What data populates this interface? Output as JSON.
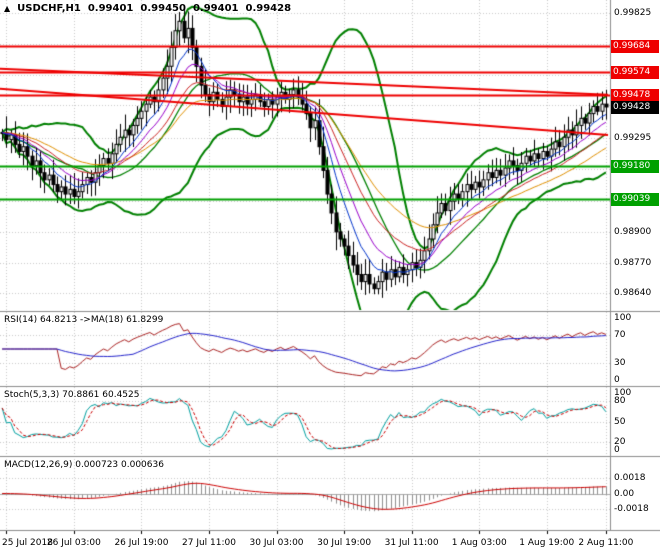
{
  "window": {
    "arrow_glyph": "▲",
    "symbol": "USDCHF,H1",
    "open": "0.99401",
    "high": "0.99450",
    "low": "0.99401",
    "close": "0.99428"
  },
  "colors": {
    "up_candle": "#ffffff",
    "down_candle": "#000000",
    "candle_border": "#000000",
    "bollinger": "#008000",
    "support": "#00a000",
    "resistance": "#ee0000",
    "current_badge": "#000000",
    "grid": "#c9c9c9",
    "separator": "#8c8c8c",
    "rsi_line": "#aa2222",
    "rsi_ma": "#2222cc",
    "stoch_k": "#00a0a0",
    "stoch_d": "#cc0000",
    "macd_signal": "#cc0000",
    "macd_hist": "#909090",
    "ema_colors": [
      "#0033cc",
      "#9900cc",
      "#cc2222",
      "#e09000"
    ]
  },
  "chart_data": {
    "type": "candlestick",
    "title": "USDCHF,H1",
    "x_labels": [
      "25 Jul 2018",
      "26 Jul 03:00",
      "26 Jul 19:00",
      "27 Jul 11:00",
      "30 Jul 03:00",
      "30 Jul 19:00",
      "31 Jul 11:00",
      "1 Aug 03:00",
      "1 Aug 19:00",
      "2 Aug 11:00"
    ],
    "x_label_indices": [
      1,
      17,
      33,
      49,
      65,
      81,
      97,
      113,
      129,
      143
    ],
    "price_range": [
      0.9857,
      0.9988
    ],
    "grid_prices": [
      0.99825,
      0.99695,
      0.99565,
      0.99435,
      0.99295,
      0.99165,
      0.9903,
      0.989,
      0.9877,
      0.9864
    ],
    "plain_axis_labels": [
      "0.99825",
      "0.99295",
      "0.98900",
      "0.98770",
      "0.98640"
    ],
    "level_labels": [
      {
        "price": 0.99684,
        "text": "0.99684",
        "kind": "resistance"
      },
      {
        "price": 0.99574,
        "text": "0.99574",
        "kind": "resistance"
      },
      {
        "price": 0.99478,
        "text": "0.99478",
        "kind": "resistance"
      },
      {
        "price": 0.99428,
        "text": "0.99428",
        "kind": "current"
      },
      {
        "price": 0.9918,
        "text": "0.99180",
        "kind": "support"
      },
      {
        "price": 0.99039,
        "text": "0.99039",
        "kind": "support"
      }
    ],
    "trendlines": [
      {
        "from": [
          0.0,
          0.9959
        ],
        "to": [
          1.0,
          0.9948
        ]
      },
      {
        "from": [
          0.0,
          0.99505
        ],
        "to": [
          1.0,
          0.9931
        ]
      }
    ],
    "bollinger": {
      "period": 20,
      "deviation": 2
    },
    "ema_periods": [
      8,
      13,
      21,
      34
    ],
    "closes": [
      0.9932,
      0.9929,
      0.9931,
      0.9927,
      0.9924,
      0.9926,
      0.9922,
      0.9918,
      0.992,
      0.9915,
      0.9912,
      0.9914,
      0.991,
      0.9907,
      0.9909,
      0.9906,
      0.9908,
      0.9905,
      0.9907,
      0.991,
      0.9913,
      0.9911,
      0.9915,
      0.9918,
      0.9921,
      0.9919,
      0.9923,
      0.9927,
      0.993,
      0.9933,
      0.9931,
      0.9935,
      0.9938,
      0.9941,
      0.9944,
      0.9947,
      0.9945,
      0.995,
      0.9955,
      0.996,
      0.9968,
      0.9975,
      0.9979,
      0.9972,
      0.9976,
      0.9968,
      0.996,
      0.9952,
      0.9948,
      0.9945,
      0.9949,
      0.9946,
      0.9943,
      0.9947,
      0.995,
      0.9948,
      0.9945,
      0.9947,
      0.9944,
      0.9946,
      0.9948,
      0.9945,
      0.9943,
      0.9946,
      0.9944,
      0.9947,
      0.9949,
      0.9946,
      0.9948,
      0.995,
      0.9947,
      0.9944,
      0.994,
      0.9934,
      0.9937,
      0.9926,
      0.9916,
      0.9906,
      0.9898,
      0.989,
      0.9887,
      0.9884,
      0.988,
      0.9876,
      0.9872,
      0.9869,
      0.9872,
      0.9868,
      0.9866,
      0.9869,
      0.9873,
      0.987,
      0.9874,
      0.9871,
      0.9875,
      0.9872,
      0.9874,
      0.9877,
      0.9875,
      0.9878,
      0.9882,
      0.9887,
      0.9893,
      0.9898,
      0.9902,
      0.9899,
      0.9903,
      0.9906,
      0.9904,
      0.9907,
      0.991,
      0.9908,
      0.9911,
      0.9909,
      0.9912,
      0.9915,
      0.9913,
      0.9916,
      0.9914,
      0.9917,
      0.992,
      0.9918,
      0.9916,
      0.9919,
      0.9922,
      0.992,
      0.9923,
      0.9921,
      0.9924,
      0.9922,
      0.9925,
      0.9928,
      0.9926,
      0.993,
      0.9933,
      0.9931,
      0.9935,
      0.9938,
      0.9936,
      0.994,
      0.9943,
      0.9941,
      0.9944,
      0.99428
    ],
    "panes": {
      "rsi": {
        "header": "RSI(14) 64.8213 ->MA(18) 61.8299",
        "period": 14,
        "ma_period": 18,
        "value": "64.8213",
        "ma_value": "61.8299",
        "levels": [
          70,
          30
        ],
        "axis_labels": [
          "100",
          "70",
          "30",
          "0"
        ],
        "range": [
          0,
          100
        ]
      },
      "stoch": {
        "header": "Stoch(5,3,3) 70.8861 60.4525",
        "k": 5,
        "slowing": 3,
        "d": 3,
        "value_k": "70.8861",
        "value_d": "60.4525",
        "levels": [
          80,
          50,
          20
        ],
        "axis_labels": [
          "100",
          "80",
          "50",
          "20",
          "0"
        ],
        "range": [
          0,
          100
        ]
      },
      "macd": {
        "header": "MACD(12,26,9) 0.000723 0.000636",
        "fast": 12,
        "slow": 26,
        "signal": 9,
        "value_macd": "0.000723",
        "value_signal": "0.000636",
        "axis_labels": [
          "0.0018",
          "0.00",
          "-0.0018"
        ],
        "range": [
          -0.004,
          0.004
        ]
      }
    }
  }
}
